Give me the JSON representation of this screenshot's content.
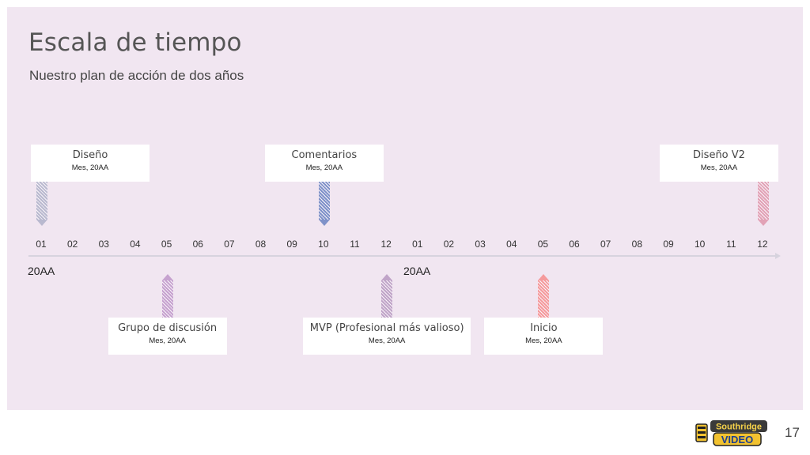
{
  "slide": {
    "title": "Escala de tiempo",
    "subtitle": "Nuestro plan de acción de dos años"
  },
  "timeline": {
    "months": [
      "01",
      "02",
      "03",
      "04",
      "05",
      "06",
      "07",
      "08",
      "09",
      "10",
      "11",
      "12",
      "01",
      "02",
      "03",
      "04",
      "05",
      "06",
      "07",
      "08",
      "09",
      "10",
      "11",
      "12"
    ],
    "years": [
      "20AA",
      "20AA"
    ],
    "milestones": [
      {
        "title": "Diseño",
        "date": "Mes, 20AA",
        "month_index": 0,
        "side": "above",
        "color": "#b9b9cf"
      },
      {
        "title": "Comentarios",
        "date": "Mes, 20AA",
        "month_index": 9,
        "side": "above",
        "color": "#7f92c9"
      },
      {
        "title": "Diseño V2",
        "date": "Mes, 20AA",
        "month_index": 23,
        "side": "above",
        "color": "#e2a2b6"
      },
      {
        "title": "Grupo de discusión",
        "date": "Mes, 20AA",
        "month_index": 4,
        "side": "below",
        "color": "#c6a2cf"
      },
      {
        "title": "MVP (Profesional más valioso)",
        "date": "Mes, 20AA",
        "month_index": 11,
        "side": "below",
        "color": "#c0a4c8"
      },
      {
        "title": "Inicio",
        "date": "Mes, 20AA",
        "month_index": 16,
        "side": "below",
        "color": "#f59a9c"
      }
    ]
  },
  "footer": {
    "logo_text_top": "Southridge",
    "logo_text_bottom": "VIDEO",
    "page_number": "17"
  }
}
